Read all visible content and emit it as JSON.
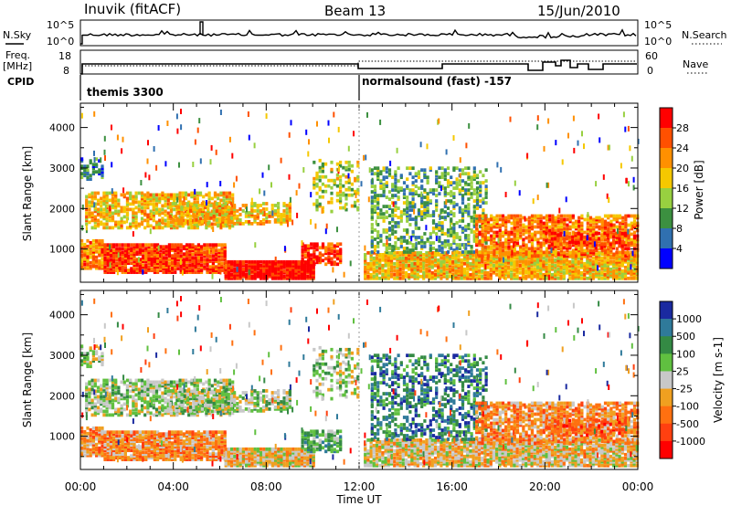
{
  "header": {
    "station": "Inuvik (fitACF)",
    "beam": "Beam 13",
    "date": "15/Jun/2010"
  },
  "noise_panel": {
    "left_label": "N.Sky",
    "left_ticks": [
      "10^5",
      "10^0"
    ],
    "right_label": "N.Search",
    "right_ticks": [
      "10^5",
      "10^0"
    ]
  },
  "freq_panel": {
    "left_label_1": "Freq.",
    "left_label_2": "[MHz]",
    "left_ticks": [
      "18",
      "8"
    ],
    "right_label": "Nave",
    "right_ticks": [
      "60",
      "0"
    ]
  },
  "cpid": {
    "label": "CPID",
    "segments": [
      {
        "name": "themis 3300",
        "start_hour": 0
      },
      {
        "name": "normalsound (fast) -157",
        "start_hour": 12
      }
    ]
  },
  "chart_data": [
    {
      "type": "heatmap",
      "name": "power",
      "ylabel": "Slant Range [km]",
      "yticks": [
        1000,
        2000,
        3000,
        4000
      ],
      "ylim": [
        180,
        4600
      ],
      "xlabel": "Time UT",
      "xticks": [
        "00:00",
        "04:00",
        "08:00",
        "12:00",
        "16:00",
        "20:00",
        "00:00"
      ],
      "xlim": [
        0,
        24
      ],
      "colorbar": {
        "label": "Power [dB]",
        "ticks": [
          "28",
          "24",
          "20",
          "16",
          "12",
          "8",
          "4"
        ],
        "colors": [
          "#ff0000",
          "#ff5000",
          "#ff9000",
          "#f5c800",
          "#98d040",
          "#3c9040",
          "#3070b0",
          "#0000ff"
        ]
      }
    },
    {
      "type": "heatmap",
      "name": "velocity",
      "ylabel": "Slant Range [km]",
      "yticks": [
        1000,
        2000,
        3000,
        4000
      ],
      "ylim": [
        180,
        4600
      ],
      "xlabel": "Time UT",
      "xticks": [
        "00:00",
        "04:00",
        "08:00",
        "12:00",
        "16:00",
        "20:00",
        "00:00"
      ],
      "xlim": [
        0,
        24
      ],
      "colorbar": {
        "label": "Velocity [m s-1]",
        "ticks": [
          "1000",
          "500",
          "100",
          "25",
          "-25",
          "-100",
          "-500",
          "-1000"
        ],
        "colors": [
          "#1a2aa0",
          "#2f7a9a",
          "#348a44",
          "#60c040",
          "#c8c8c8",
          "#f0a020",
          "#ff7010",
          "#ff4010",
          "#ff0000"
        ]
      }
    }
  ]
}
